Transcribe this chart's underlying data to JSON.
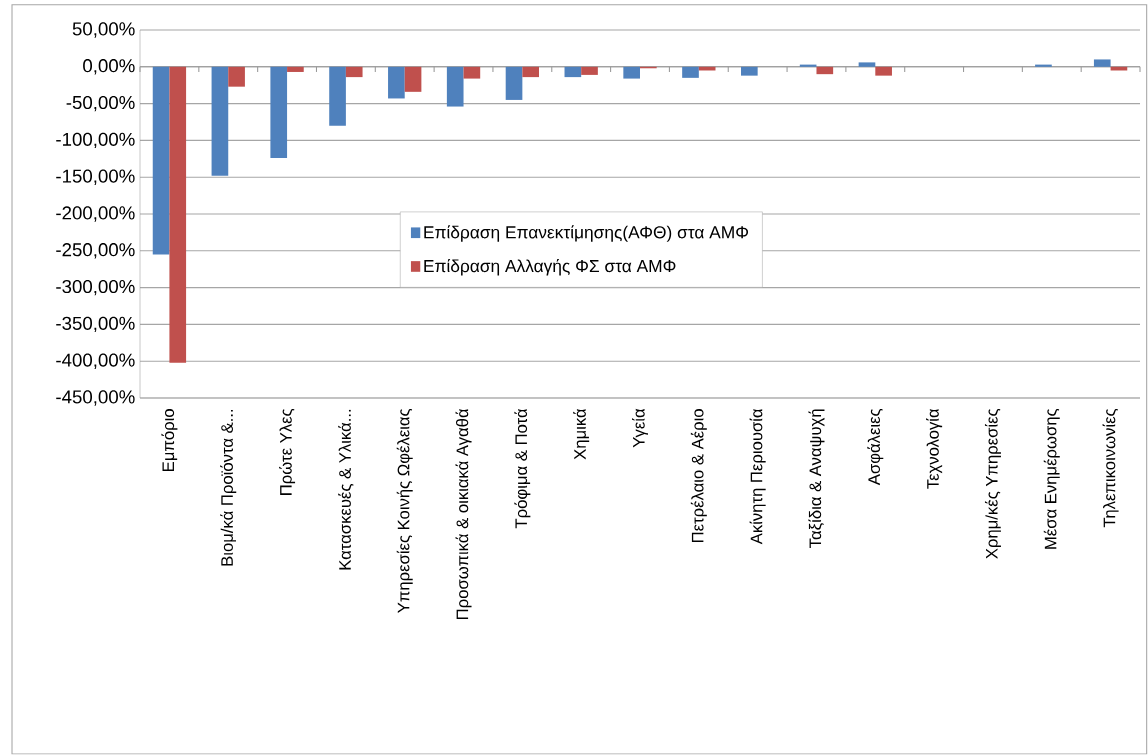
{
  "chart_data": {
    "type": "bar",
    "categories": [
      "Εμπόριο",
      "Βιομ/κά Προϊόντα &...",
      "Πρώτε Υλες",
      "Κατασκευές & Υλικά...",
      "Υπηρεσίες Κοινής Ωφέλειας",
      "Προσωπικά & οικιακά Αγαθά",
      "Τρόφιμα & Ποτά",
      "Χημικά",
      "Υγεία",
      "Πετρέλαιο & Αέριο",
      "Ακίνητη Περιουσία",
      "Ταξίδια & Αναψυχή",
      "Ασφάλειες",
      "Τεχνολογία",
      "Χρημ/κές Υπηρεσίες",
      "Μέσα Ενημέρωσης",
      "Τηλεπικοινωνίες"
    ],
    "series": [
      {
        "name": "Επίδραση Επανεκτίμησης(ΑΦΘ) στα ΑΜΦ",
        "color": "#4f81bd",
        "values": [
          -255,
          -148,
          -124,
          -80,
          -43,
          -54,
          -45,
          -14,
          -16,
          -15,
          -12,
          3,
          6,
          0,
          0,
          3,
          10
        ]
      },
      {
        "name": "Επίδραση Αλλαγής ΦΣ στα ΑΜΦ",
        "color": "#c0504d",
        "values": [
          -402,
          -27,
          -7,
          -14,
          -34,
          -16,
          -14,
          -11,
          -2,
          -5,
          0,
          -10,
          -12,
          0,
          0,
          0,
          -5
        ]
      }
    ],
    "ylim": [
      -450,
      50
    ],
    "yticks": [
      {
        "value": 50,
        "label": "50,00%"
      },
      {
        "value": 0,
        "label": "0,00%"
      },
      {
        "value": -50,
        "label": "-50,00%"
      },
      {
        "value": -100,
        "label": "-100,00%"
      },
      {
        "value": -150,
        "label": "-150,00%"
      },
      {
        "value": -200,
        "label": "-200,00%"
      },
      {
        "value": -250,
        "label": "-250,00%"
      },
      {
        "value": -300,
        "label": "-300,00%"
      },
      {
        "value": -350,
        "label": "-350,00%"
      },
      {
        "value": -400,
        "label": "-400,00%"
      },
      {
        "value": -450,
        "label": "-450,00%"
      }
    ],
    "grid": "y",
    "legend": "center"
  }
}
